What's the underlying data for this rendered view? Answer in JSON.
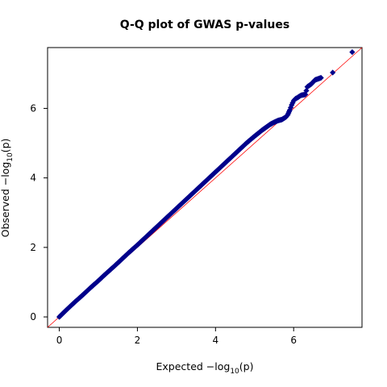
{
  "chart_data": {
    "type": "scatter",
    "title": "Q-Q plot of GWAS p-values",
    "xlabel": {
      "prefix": "Expected  −log",
      "subscript": "10",
      "suffix": "(p)"
    },
    "ylabel": {
      "prefix": "Observed  −log",
      "subscript": "10",
      "suffix": "(p)"
    },
    "xlim": [
      -0.3,
      7.75
    ],
    "ylim": [
      -0.3,
      7.75
    ],
    "xticks": [
      "0",
      "2",
      "4",
      "6"
    ],
    "yticks": [
      "0",
      "2",
      "4",
      "6"
    ],
    "grid": false,
    "legend": "none",
    "marker_color": "#00008b",
    "reference_line_color": "#ff0000",
    "reference_line": {
      "slope": 1,
      "intercept": 0
    },
    "series": [
      {
        "x": [
          0.0,
          0.2,
          0.4,
          0.6,
          0.8,
          1.0,
          1.2,
          1.4,
          1.6,
          1.8,
          2.0,
          2.2,
          2.4,
          2.6,
          2.8,
          3.0,
          3.2,
          3.4,
          3.6,
          3.8,
          4.0,
          4.2,
          4.4,
          4.6,
          4.8,
          5.0,
          5.2,
          5.4,
          5.5,
          5.6,
          5.7,
          5.8,
          5.85,
          5.9,
          5.95,
          6.0,
          6.05,
          6.1,
          6.15,
          6.2,
          6.3,
          6.35,
          6.45,
          6.55,
          6.7,
          7.0,
          7.5
        ],
        "y": [
          0.0,
          0.22,
          0.43,
          0.63,
          0.84,
          1.04,
          1.25,
          1.45,
          1.66,
          1.87,
          2.07,
          2.28,
          2.49,
          2.7,
          2.91,
          3.12,
          3.33,
          3.54,
          3.75,
          3.96,
          4.17,
          4.38,
          4.59,
          4.8,
          5.01,
          5.2,
          5.38,
          5.54,
          5.6,
          5.65,
          5.68,
          5.75,
          5.82,
          5.95,
          6.1,
          6.22,
          6.28,
          6.31,
          6.35,
          6.38,
          6.4,
          6.62,
          6.7,
          6.82,
          6.88,
          7.03,
          7.62
        ]
      }
    ]
  }
}
